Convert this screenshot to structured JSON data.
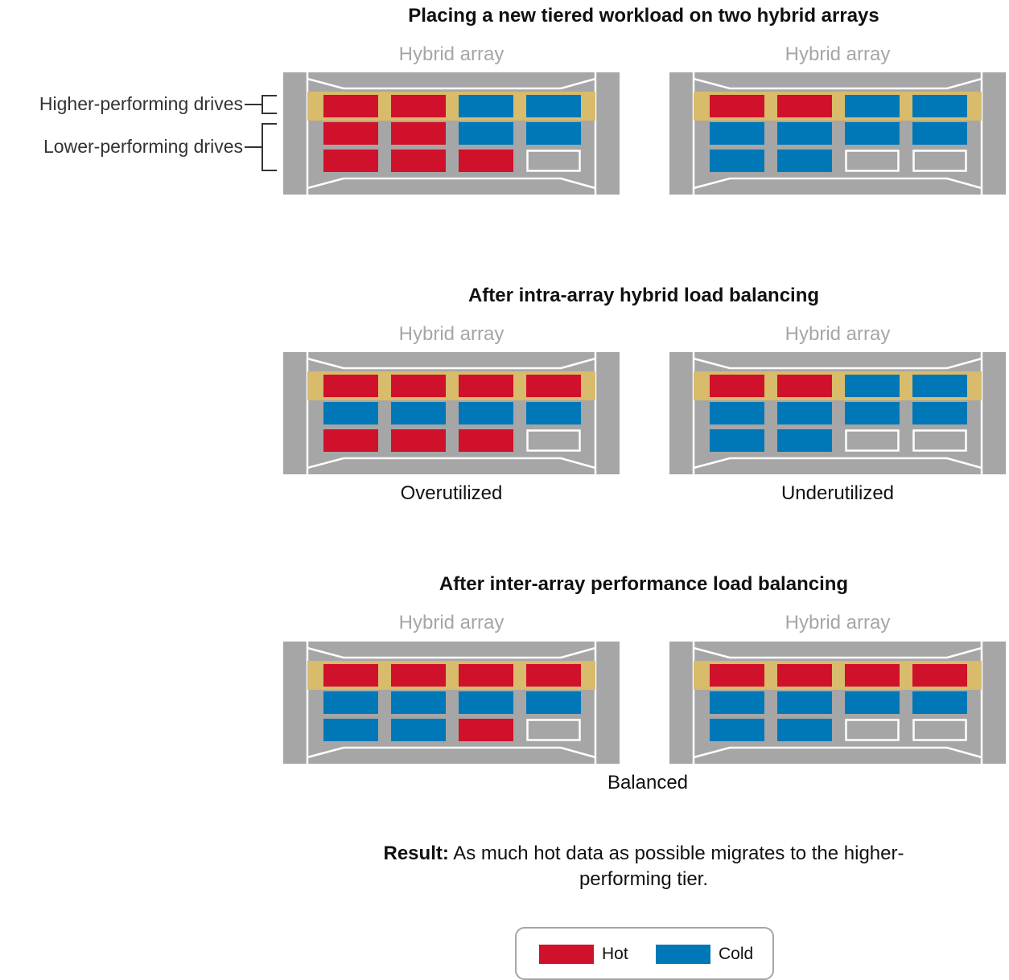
{
  "colors": {
    "hot": "#d0112b",
    "cold": "#0078b7",
    "empty": "#a6a6a6",
    "tier": "#d8bb6b",
    "chassis": "#a6a6a6",
    "chassis_line": "#ffffff"
  },
  "annotations": {
    "higher": "Higher-performing drives",
    "lower": "Lower-performing drives"
  },
  "sections": [
    {
      "title": "Placing a new tiered workload on two hybrid arrays",
      "caption": "",
      "arrays": [
        {
          "label": "Hybrid array",
          "status": "",
          "rows": [
            [
              "hot",
              "hot",
              "cold",
              "cold"
            ],
            [
              "hot",
              "hot",
              "cold",
              "cold"
            ],
            [
              "hot",
              "hot",
              "hot",
              "empty"
            ]
          ]
        },
        {
          "label": "Hybrid array",
          "status": "",
          "rows": [
            [
              "hot",
              "hot",
              "cold",
              "cold"
            ],
            [
              "cold",
              "cold",
              "cold",
              "cold"
            ],
            [
              "cold",
              "cold",
              "empty",
              "empty"
            ]
          ]
        }
      ]
    },
    {
      "title": "After intra-array hybrid load balancing",
      "caption": "",
      "arrays": [
        {
          "label": "Hybrid array",
          "status": "Overutilized",
          "rows": [
            [
              "hot",
              "hot",
              "hot",
              "hot"
            ],
            [
              "cold",
              "cold",
              "cold",
              "cold"
            ],
            [
              "hot",
              "hot",
              "hot",
              "empty"
            ]
          ]
        },
        {
          "label": "Hybrid array",
          "status": "Underutilized",
          "rows": [
            [
              "hot",
              "hot",
              "cold",
              "cold"
            ],
            [
              "cold",
              "cold",
              "cold",
              "cold"
            ],
            [
              "cold",
              "cold",
              "empty",
              "empty"
            ]
          ]
        }
      ]
    },
    {
      "title": "After inter-array performance load balancing",
      "caption": "Balanced",
      "arrays": [
        {
          "label": "Hybrid array",
          "status": "",
          "rows": [
            [
              "hot",
              "hot",
              "hot",
              "hot"
            ],
            [
              "cold",
              "cold",
              "cold",
              "cold"
            ],
            [
              "cold",
              "cold",
              "hot",
              "empty"
            ]
          ]
        },
        {
          "label": "Hybrid array",
          "status": "",
          "rows": [
            [
              "hot",
              "hot",
              "hot",
              "hot"
            ],
            [
              "cold",
              "cold",
              "cold",
              "cold"
            ],
            [
              "cold",
              "cold",
              "empty",
              "empty"
            ]
          ]
        }
      ]
    }
  ],
  "result": {
    "label": "Result:",
    "text": " As much hot data as possible migrates to the higher-performing tier."
  },
  "legend": [
    {
      "key": "hot",
      "label": "Hot"
    },
    {
      "key": "cold",
      "label": "Cold"
    }
  ]
}
